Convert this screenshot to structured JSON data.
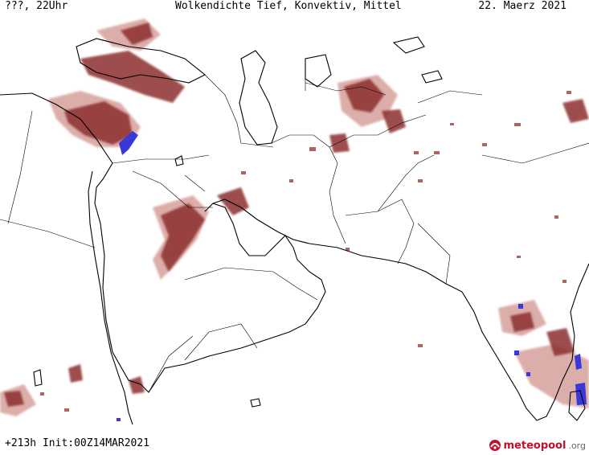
{
  "header": {
    "left": "???, 22Uhr",
    "center": "Wolkendichte  Tief, Konvektiv, Mittel",
    "right": "22. Maerz 2021"
  },
  "footer": {
    "run_info": "+213h Init:00Z14MAR2021"
  },
  "logo": {
    "name": "meteopool",
    "tld": ".org"
  },
  "colors": {
    "background": "#ffffff",
    "coastline": "#000000",
    "cloud_light": "#d9a6a0",
    "cloud_mid": "#b06460",
    "cloud_dark": "#8c2e2e",
    "cloud_convective": "#3b38d8",
    "logo_red": "#c0102b"
  }
}
